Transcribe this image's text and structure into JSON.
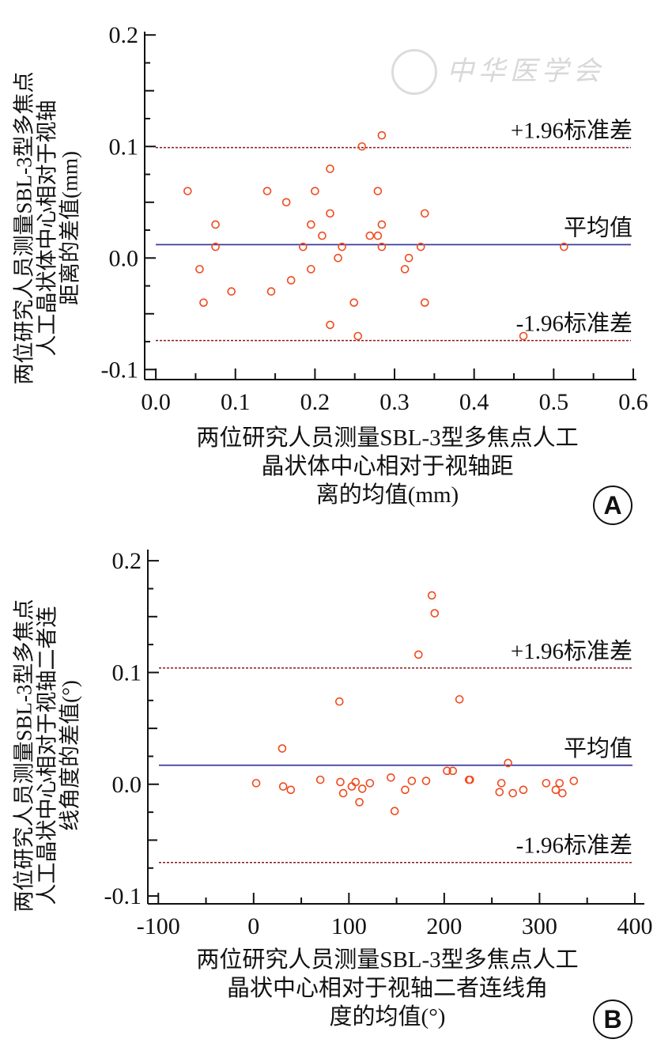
{
  "watermark": "中华医学会",
  "colors": {
    "points": "#f04a1e",
    "mean_line": "#3b3b9c",
    "limit_line": "#8b1a1a",
    "axis": "#111111"
  },
  "chart_data": [
    {
      "type": "scatter",
      "panel": "A",
      "title": "",
      "xlabel_lines": [
        "两位研究人员测量SBL-3型多焦点人工",
        "晶状体中心相对于视轴距",
        "离的均值(mm)"
      ],
      "ylabel_lines": [
        "两位研究人员测量SBL-3型多焦点",
        "人工晶状体中心相对于视轴",
        "距离的差值(mm)"
      ],
      "xlim": [
        -0.014,
        0.604
      ],
      "ylim": [
        -0.109,
        0.203
      ],
      "xticks": [
        0.0,
        0.1,
        0.2,
        0.3,
        0.4,
        0.5,
        0.6
      ],
      "xtick_labels": [
        "0.0",
        "0.1",
        "0.2",
        "0.3",
        "0.4",
        "0.5",
        "0.6"
      ],
      "yticks": [
        0.2,
        0.1,
        0.0,
        -0.1
      ],
      "ytick_labels": [
        "0.2",
        "0.1",
        "0.0",
        "-0.1"
      ],
      "grid": false,
      "mean": 0.012,
      "upper_limit": 0.099,
      "lower_limit": -0.074,
      "line_labels": {
        "upper": "+1.96标准差",
        "mean": "平均值",
        "lower": "-1.96标准差"
      },
      "points": [
        [
          0.04,
          0.06
        ],
        [
          0.14,
          0.06
        ],
        [
          0.2,
          0.06
        ],
        [
          0.279,
          0.06
        ],
        [
          0.219,
          0.08
        ],
        [
          0.259,
          0.1
        ],
        [
          0.284,
          0.11
        ],
        [
          0.164,
          0.05
        ],
        [
          0.075,
          0.03
        ],
        [
          0.195,
          0.03
        ],
        [
          0.284,
          0.03
        ],
        [
          0.219,
          0.04
        ],
        [
          0.338,
          0.04
        ],
        [
          0.209,
          0.02
        ],
        [
          0.269,
          0.02
        ],
        [
          0.279,
          0.02
        ],
        [
          0.075,
          0.01
        ],
        [
          0.185,
          0.01
        ],
        [
          0.234,
          0.01
        ],
        [
          0.284,
          0.01
        ],
        [
          0.333,
          0.01
        ],
        [
          0.229,
          0.0
        ],
        [
          0.318,
          0.0
        ],
        [
          0.055,
          -0.01
        ],
        [
          0.195,
          -0.01
        ],
        [
          0.313,
          -0.01
        ],
        [
          0.17,
          -0.02
        ],
        [
          0.095,
          -0.03
        ],
        [
          0.145,
          -0.03
        ],
        [
          0.06,
          -0.04
        ],
        [
          0.249,
          -0.04
        ],
        [
          0.338,
          -0.04
        ],
        [
          0.219,
          -0.06
        ],
        [
          0.254,
          -0.07
        ],
        [
          0.513,
          0.01
        ],
        [
          0.462,
          -0.07
        ]
      ]
    },
    {
      "type": "scatter",
      "panel": "B",
      "title": "",
      "xlabel_lines": [
        "两位研究人员测量SBL-3型多焦点人工",
        "晶状中心相对于视轴二者连线角",
        "度的均值(°)"
      ],
      "ylabel_lines": [
        "两位研究人员测量SBL-3型多焦点",
        "人工晶状中心相对于视轴二者连",
        "线角度的差值(°)"
      ],
      "xlim": [
        -111,
        410
      ],
      "ylim": [
        -0.107,
        0.21
      ],
      "xticks": [
        -100,
        0,
        100,
        200,
        300,
        400
      ],
      "xtick_labels": [
        "-100",
        "0",
        "100",
        "200",
        "300",
        "400"
      ],
      "yticks": [
        0.2,
        0.1,
        0.0,
        -0.1
      ],
      "ytick_labels": [
        "0.2",
        "0.1",
        "0.0",
        "-0.1"
      ],
      "grid": false,
      "mean": 0.017,
      "upper_limit": 0.104,
      "lower_limit": -0.07,
      "line_labels": {
        "upper": "+1.96标准差",
        "mean": "平均值",
        "lower": "-1.96标准差"
      },
      "points": [
        [
          2.7,
          0.001
        ],
        [
          30,
          0.032
        ],
        [
          31,
          -0.002
        ],
        [
          39,
          -0.005
        ],
        [
          70,
          0.004
        ],
        [
          90,
          0.074
        ],
        [
          91,
          0.002
        ],
        [
          94,
          -0.008
        ],
        [
          103,
          -0.002
        ],
        [
          107,
          0.002
        ],
        [
          114,
          -0.004
        ],
        [
          111,
          -0.016
        ],
        [
          122,
          0.001
        ],
        [
          144,
          0.006
        ],
        [
          148,
          -0.024
        ],
        [
          159,
          -0.005
        ],
        [
          166,
          0.003
        ],
        [
          173,
          0.116
        ],
        [
          181,
          0.003
        ],
        [
          187,
          0.169
        ],
        [
          190,
          0.153
        ],
        [
          203,
          0.012
        ],
        [
          209,
          0.012
        ],
        [
          216,
          0.076
        ],
        [
          226,
          0.004
        ],
        [
          227,
          0.004
        ],
        [
          258,
          -0.007
        ],
        [
          260,
          0.001
        ],
        [
          267,
          0.019
        ],
        [
          272,
          -0.008
        ],
        [
          283,
          -0.005
        ],
        [
          307,
          0.001
        ],
        [
          317,
          -0.005
        ],
        [
          321,
          0.001
        ],
        [
          324,
          -0.008
        ],
        [
          336,
          0.003
        ]
      ]
    }
  ]
}
